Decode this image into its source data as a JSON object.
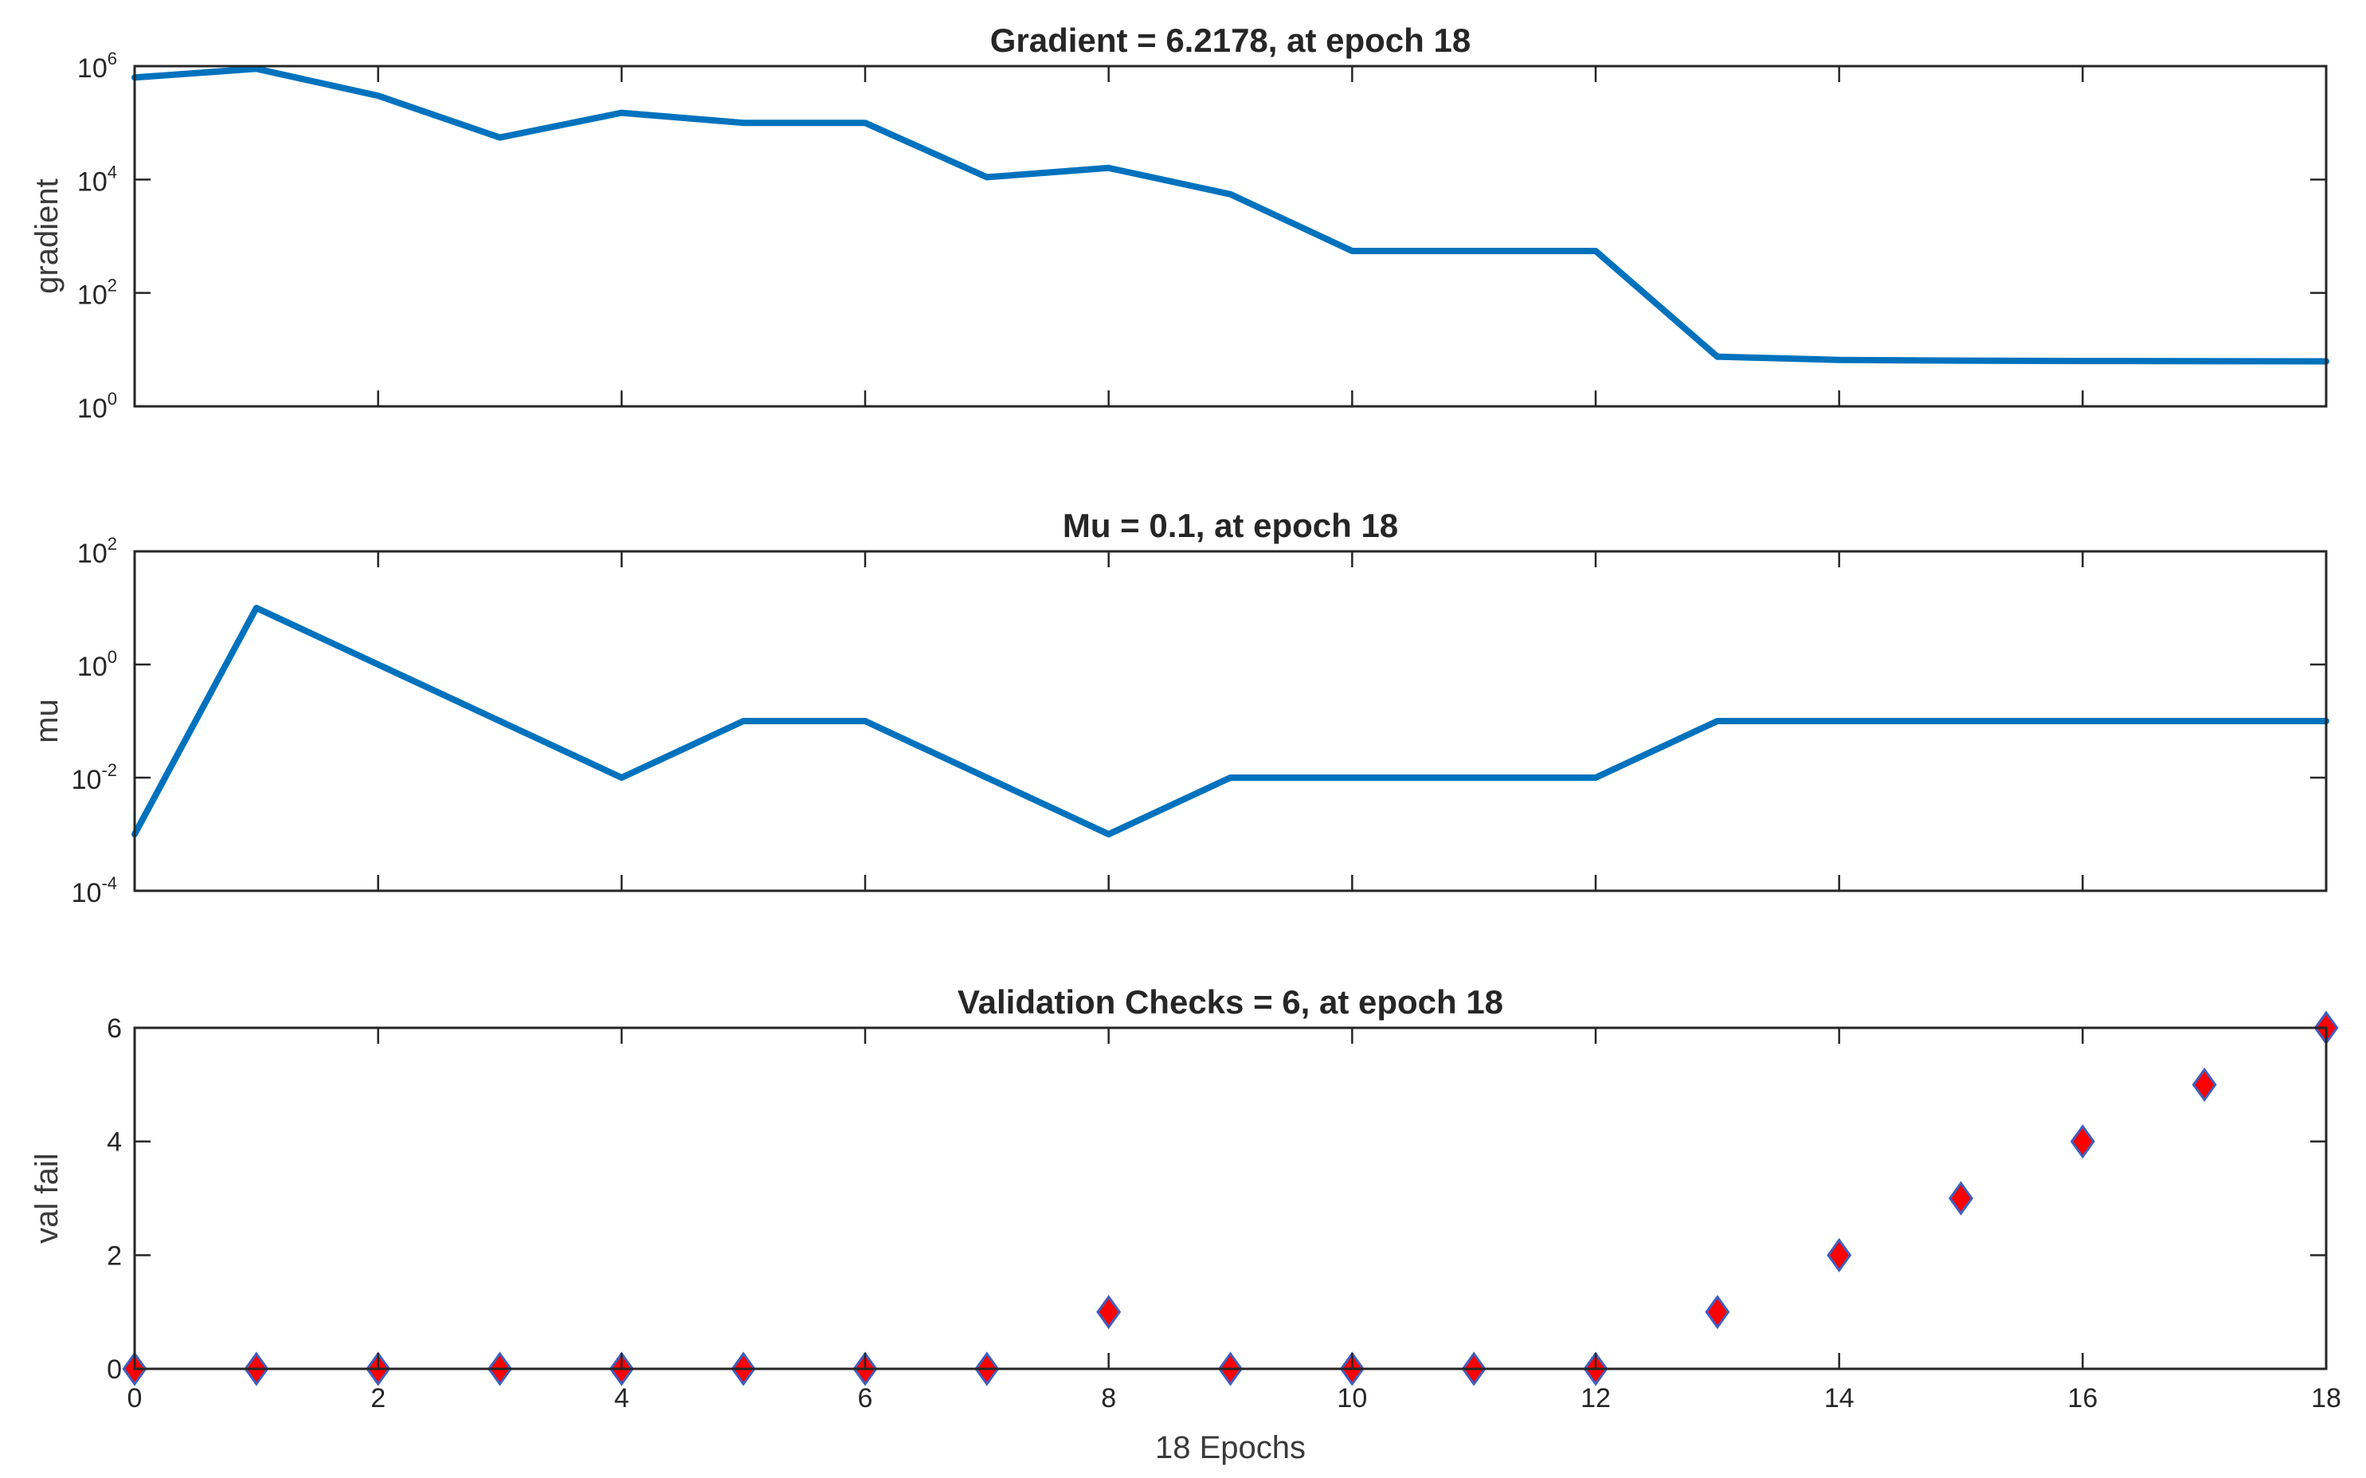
{
  "chart_data": [
    {
      "type": "line",
      "title": "Gradient = 6.2178, at epoch 18",
      "ylabel": "gradient",
      "xlabel": "",
      "yscale": "log",
      "xlim": [
        0,
        18
      ],
      "ylim": [
        1,
        1000000
      ],
      "x_ticks": [
        0,
        2,
        4,
        6,
        8,
        10,
        12,
        14,
        16,
        18
      ],
      "show_x_tick_labels": false,
      "y_ticks": [
        {
          "base": "10",
          "exp": "0",
          "value": 1
        },
        {
          "base": "10",
          "exp": "2",
          "value": 100
        },
        {
          "base": "10",
          "exp": "4",
          "value": 10000
        },
        {
          "base": "10",
          "exp": "6",
          "value": 1000000
        }
      ],
      "color": "#0072bd",
      "x": [
        0,
        1,
        2,
        3,
        4,
        5,
        6,
        7,
        8,
        9,
        10,
        11,
        12,
        13,
        14,
        15,
        16,
        18
      ],
      "values": [
        630000,
        900000,
        300000,
        55000,
        150000,
        100000,
        100000,
        11000,
        16000,
        5500,
        550,
        550,
        550,
        7.5,
        6.6,
        6.4,
        6.3,
        6.2178
      ]
    },
    {
      "type": "line",
      "title": "Mu = 0.1, at epoch 18",
      "ylabel": "mu",
      "xlabel": "",
      "yscale": "log",
      "xlim": [
        0,
        18
      ],
      "ylim": [
        0.0001,
        100
      ],
      "x_ticks": [
        0,
        2,
        4,
        6,
        8,
        10,
        12,
        14,
        16,
        18
      ],
      "show_x_tick_labels": false,
      "y_ticks": [
        {
          "base": "10",
          "exp": "-4",
          "value": 0.0001
        },
        {
          "base": "10",
          "exp": "-2",
          "value": 0.01
        },
        {
          "base": "10",
          "exp": "0",
          "value": 1
        },
        {
          "base": "10",
          "exp": "2",
          "value": 100
        }
      ],
      "color": "#0072bd",
      "x": [
        0,
        1,
        2,
        3,
        4,
        5,
        6,
        7,
        8,
        9,
        10,
        11,
        12,
        13,
        14,
        15,
        16,
        17,
        18
      ],
      "values": [
        0.001,
        10,
        1,
        0.1,
        0.01,
        0.1,
        0.1,
        0.01,
        0.001,
        0.01,
        0.01,
        0.01,
        0.01,
        0.1,
        0.1,
        0.1,
        0.1,
        0.1,
        0.1
      ]
    },
    {
      "type": "scatter",
      "title": "Validation Checks = 6, at epoch 18",
      "ylabel": "val fail",
      "xlabel": "18 Epochs",
      "yscale": "linear",
      "xlim": [
        0,
        18
      ],
      "ylim": [
        0,
        6
      ],
      "x_ticks": [
        0,
        2,
        4,
        6,
        8,
        10,
        12,
        14,
        16,
        18
      ],
      "show_x_tick_labels": true,
      "y_ticks": [
        {
          "label": "0",
          "value": 0
        },
        {
          "label": "2",
          "value": 2
        },
        {
          "label": "4",
          "value": 4
        },
        {
          "label": "6",
          "value": 6
        }
      ],
      "marker": "diamond",
      "marker_color": "#ff0000",
      "marker_edge_color": "#3f5fbf",
      "x": [
        0,
        1,
        2,
        3,
        4,
        5,
        6,
        7,
        8,
        9,
        10,
        11,
        12,
        13,
        14,
        15,
        16,
        17,
        18
      ],
      "values": [
        0,
        0,
        0,
        0,
        0,
        0,
        0,
        0,
        1,
        0,
        0,
        0,
        0,
        1,
        2,
        3,
        4,
        5,
        6
      ]
    }
  ]
}
